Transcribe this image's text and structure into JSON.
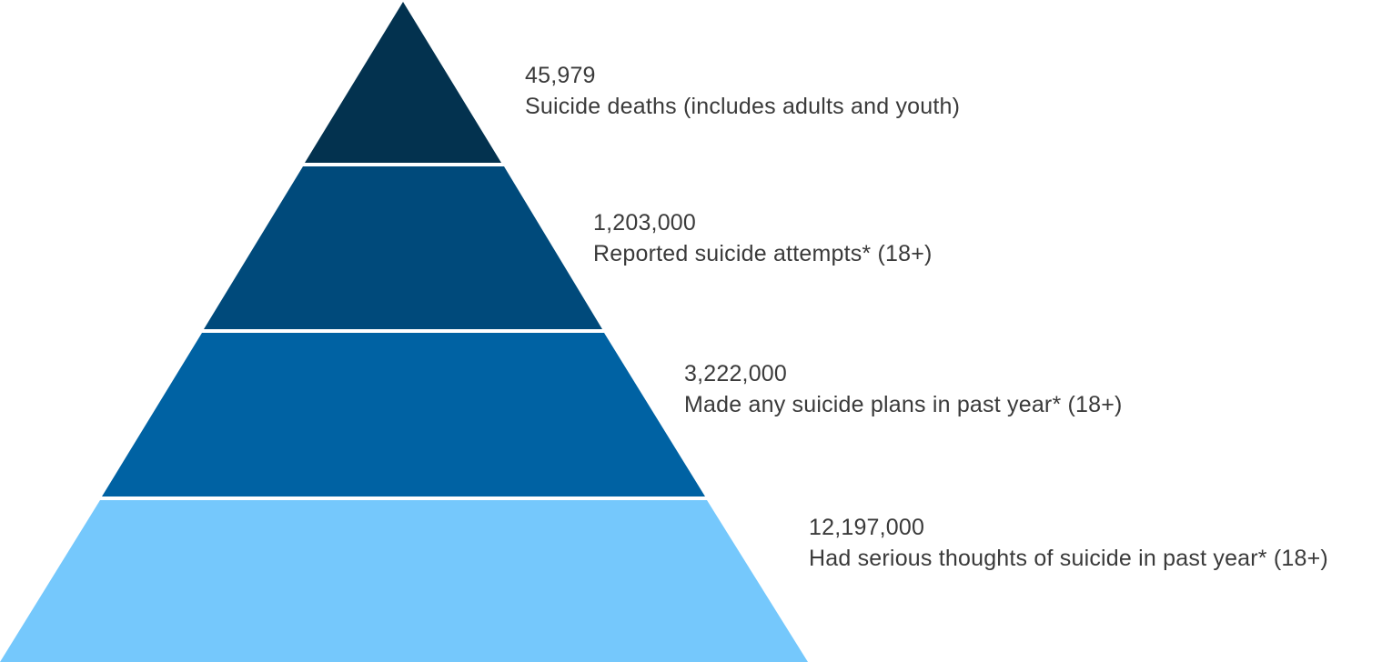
{
  "tiers": [
    {
      "value": "45,979",
      "label": "Suicide deaths (includes adults and youth)",
      "color": "#03324f"
    },
    {
      "value": "1,203,000",
      "label": "Reported suicide attempts* (18+)",
      "color": "#004a7b"
    },
    {
      "value": "3,222,000",
      "label": "Made any suicide plans in past year* (18+)",
      "color": "#0062a3"
    },
    {
      "value": "12,197,000",
      "label": "Had serious thoughts of suicide in past year* (18+)",
      "color": "#75c8fc"
    }
  ]
}
